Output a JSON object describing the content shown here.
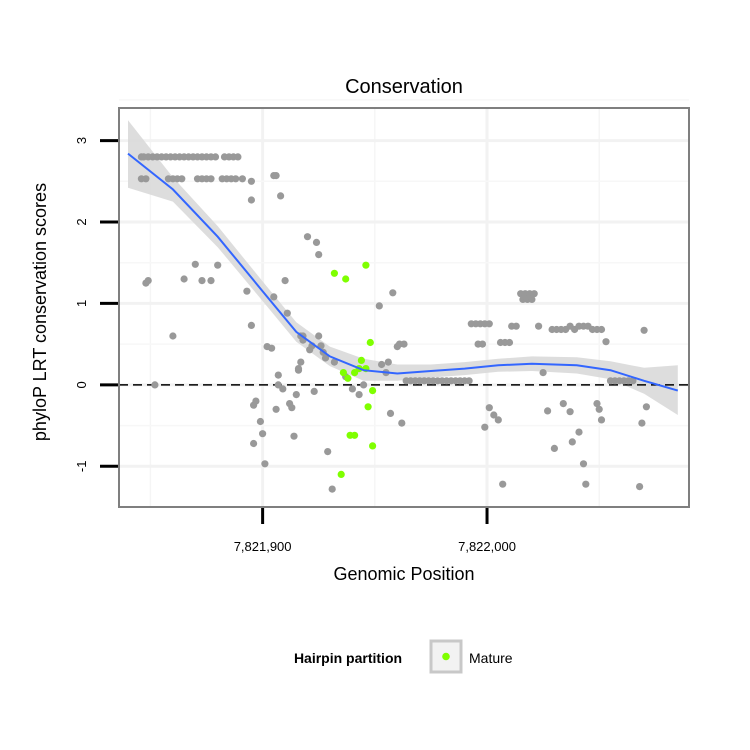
{
  "chart_data": {
    "type": "scatter",
    "title": "Conservation",
    "xlabel": "Genomic Position",
    "ylabel": "phyloP LRT conservation scores",
    "xlim": [
      7821836,
      7822090
    ],
    "ylim": [
      -1.5,
      3.4
    ],
    "x_ticks": [
      {
        "value": 7821900,
        "label": "7,821,900"
      },
      {
        "value": 7822000,
        "label": "7,822,000"
      }
    ],
    "y_ticks": [
      {
        "value": -1,
        "label": "-1"
      },
      {
        "value": 0,
        "label": "0"
      },
      {
        "value": 1,
        "label": "1"
      },
      {
        "value": 2,
        "label": "2"
      },
      {
        "value": 3,
        "label": "3"
      }
    ],
    "reference_line": {
      "y": 0,
      "style": "dashed"
    },
    "legend": {
      "title": "Hairpin partition",
      "entries": [
        {
          "label": "Mature",
          "color": "#7fff00"
        }
      ],
      "position": "bottom"
    },
    "colors": {
      "other": "#999999",
      "mature": "#7fff00",
      "smooth": "#3366ff",
      "band": "#d9d9d9",
      "grid": "#f2f2f2",
      "border": "#7f7f7f"
    },
    "series": [
      {
        "name": "Other",
        "color": "#999999",
        "points": [
          [
            7821846,
            2.8
          ],
          [
            7821847,
            2.8
          ],
          [
            7821849,
            2.8
          ],
          [
            7821851,
            2.8
          ],
          [
            7821853,
            2.8
          ],
          [
            7821855,
            2.8
          ],
          [
            7821857,
            2.8
          ],
          [
            7821859,
            2.8
          ],
          [
            7821861,
            2.8
          ],
          [
            7821863,
            2.8
          ],
          [
            7821865,
            2.8
          ],
          [
            7821867,
            2.8
          ],
          [
            7821869,
            2.8
          ],
          [
            7821871,
            2.8
          ],
          [
            7821873,
            2.8
          ],
          [
            7821875,
            2.8
          ],
          [
            7821877,
            2.8
          ],
          [
            7821879,
            2.8
          ],
          [
            7821883,
            2.8
          ],
          [
            7821885,
            2.8
          ],
          [
            7821887,
            2.8
          ],
          [
            7821889,
            2.8
          ],
          [
            7821846,
            2.53
          ],
          [
            7821848,
            2.53
          ],
          [
            7821858,
            2.53
          ],
          [
            7821860,
            2.53
          ],
          [
            7821862,
            2.53
          ],
          [
            7821864,
            2.53
          ],
          [
            7821871,
            2.53
          ],
          [
            7821873,
            2.53
          ],
          [
            7821875,
            2.53
          ],
          [
            7821877,
            2.53
          ],
          [
            7821882,
            2.53
          ],
          [
            7821884,
            2.53
          ],
          [
            7821886,
            2.53
          ],
          [
            7821888,
            2.53
          ],
          [
            7821891,
            2.53
          ],
          [
            7821895,
            2.5
          ],
          [
            7821895,
            2.27
          ],
          [
            7821905,
            2.57
          ],
          [
            7821906,
            2.57
          ],
          [
            7821908,
            2.32
          ],
          [
            7821848,
            1.25
          ],
          [
            7821849,
            1.28
          ],
          [
            7821852,
            0.0
          ],
          [
            7821860,
            0.6
          ],
          [
            7821865,
            1.3
          ],
          [
            7821870,
            1.48
          ],
          [
            7821873,
            1.28
          ],
          [
            7821877,
            1.28
          ],
          [
            7821880,
            1.47
          ],
          [
            7821893,
            1.15
          ],
          [
            7821895,
            0.73
          ],
          [
            7821896,
            -0.25
          ],
          [
            7821897,
            -0.2
          ],
          [
            7821896,
            -0.72
          ],
          [
            7821899,
            -0.45
          ],
          [
            7821900,
            -0.6
          ],
          [
            7821901,
            -0.97
          ],
          [
            7821902,
            0.47
          ],
          [
            7821904,
            0.45
          ],
          [
            7821905,
            1.08
          ],
          [
            7821906,
            -0.3
          ],
          [
            7821907,
            0.12
          ],
          [
            7821907,
            0.0
          ],
          [
            7821909,
            -0.05
          ],
          [
            7821910,
            1.28
          ],
          [
            7821911,
            0.88
          ],
          [
            7821912,
            -0.23
          ],
          [
            7821913,
            -0.28
          ],
          [
            7821914,
            -0.63
          ],
          [
            7821915,
            -0.12
          ],
          [
            7821916,
            0.18
          ],
          [
            7821916,
            0.2
          ],
          [
            7821917,
            0.28
          ],
          [
            7821918,
            0.6
          ],
          [
            7821918,
            0.55
          ],
          [
            7821917,
            0.6
          ],
          [
            7821920,
            1.82
          ],
          [
            7821921,
            0.43
          ],
          [
            7821922,
            0.48
          ],
          [
            7821923,
            -0.08
          ],
          [
            7821924,
            1.75
          ],
          [
            7821925,
            1.6
          ],
          [
            7821925,
            0.6
          ],
          [
            7821926,
            0.48
          ],
          [
            7821927,
            0.4
          ],
          [
            7821928,
            0.33
          ],
          [
            7821929,
            -0.82
          ],
          [
            7821931,
            -1.28
          ],
          [
            7821932,
            0.28
          ],
          [
            7821937,
            0.1
          ],
          [
            7821940,
            -0.05
          ],
          [
            7821943,
            -0.12
          ],
          [
            7821945,
            0.0
          ],
          [
            7821952,
            0.97
          ],
          [
            7821953,
            0.25
          ],
          [
            7821955,
            0.15
          ],
          [
            7821956,
            0.28
          ],
          [
            7821957,
            -0.35
          ],
          [
            7821958,
            1.13
          ],
          [
            7821960,
            0.47
          ],
          [
            7821961,
            0.5
          ],
          [
            7821962,
            -0.47
          ],
          [
            7821963,
            0.5
          ],
          [
            7821964,
            0.05
          ],
          [
            7821966,
            0.05
          ],
          [
            7821968,
            0.05
          ],
          [
            7821970,
            0.05
          ],
          [
            7821972,
            0.05
          ],
          [
            7821974,
            0.05
          ],
          [
            7821976,
            0.05
          ],
          [
            7821978,
            0.05
          ],
          [
            7821980,
            0.05
          ],
          [
            7821982,
            0.05
          ],
          [
            7821984,
            0.05
          ],
          [
            7821986,
            0.05
          ],
          [
            7821988,
            0.05
          ],
          [
            7821990,
            0.05
          ],
          [
            7821992,
            0.05
          ],
          [
            7821993,
            0.75
          ],
          [
            7821995,
            0.75
          ],
          [
            7821997,
            0.75
          ],
          [
            7821999,
            0.75
          ],
          [
            7822001,
            0.75
          ],
          [
            7821996,
            0.5
          ],
          [
            7821998,
            0.5
          ],
          [
            7821999,
            -0.52
          ],
          [
            7822001,
            -0.28
          ],
          [
            7822003,
            -0.37
          ],
          [
            7822005,
            -0.43
          ],
          [
            7822006,
            0.52
          ],
          [
            7822008,
            0.52
          ],
          [
            7822010,
            0.52
          ],
          [
            7822007,
            -1.22
          ],
          [
            7822011,
            0.72
          ],
          [
            7822013,
            0.72
          ],
          [
            7822015,
            1.12
          ],
          [
            7822017,
            1.12
          ],
          [
            7822019,
            1.12
          ],
          [
            7822021,
            1.12
          ],
          [
            7822016,
            1.05
          ],
          [
            7822018,
            1.05
          ],
          [
            7822020,
            1.05
          ],
          [
            7822023,
            0.72
          ],
          [
            7822025,
            0.15
          ],
          [
            7822029,
            0.68
          ],
          [
            7822031,
            0.68
          ],
          [
            7822033,
            0.68
          ],
          [
            7822035,
            0.68
          ],
          [
            7822037,
            0.72
          ],
          [
            7822039,
            0.68
          ],
          [
            7822041,
            0.72
          ],
          [
            7822043,
            0.72
          ],
          [
            7822045,
            0.72
          ],
          [
            7822047,
            0.68
          ],
          [
            7822049,
            0.68
          ],
          [
            7822051,
            0.68
          ],
          [
            7822027,
            -0.32
          ],
          [
            7822030,
            -0.78
          ],
          [
            7822034,
            -0.23
          ],
          [
            7822037,
            -0.33
          ],
          [
            7822038,
            -0.7
          ],
          [
            7822041,
            -0.58
          ],
          [
            7822043,
            -0.97
          ],
          [
            7822044,
            -1.22
          ],
          [
            7822049,
            -0.23
          ],
          [
            7822050,
            -0.3
          ],
          [
            7822051,
            -0.43
          ],
          [
            7822053,
            0.53
          ],
          [
            7822055,
            0.05
          ],
          [
            7822057,
            0.05
          ],
          [
            7822059,
            0.05
          ],
          [
            7822061,
            0.05
          ],
          [
            7822063,
            0.05
          ],
          [
            7822065,
            0.05
          ],
          [
            7822068,
            -1.25
          ],
          [
            7822069,
            -0.47
          ],
          [
            7822070,
            0.67
          ],
          [
            7822071,
            -0.27
          ]
        ]
      },
      {
        "name": "Mature",
        "color": "#7fff00",
        "points": [
          [
            7821946,
            1.47
          ],
          [
            7821932,
            1.37
          ],
          [
            7821937,
            1.3
          ],
          [
            7821944,
            0.3
          ],
          [
            7821941,
            0.15
          ],
          [
            7821943,
            0.2
          ],
          [
            7821946,
            0.2
          ],
          [
            7821948,
            0.52
          ],
          [
            7821936,
            0.15
          ],
          [
            7821938,
            0.08
          ],
          [
            7821947,
            -0.27
          ],
          [
            7821949,
            -0.07
          ],
          [
            7821939,
            -0.62
          ],
          [
            7821941,
            -0.62
          ],
          [
            7821949,
            -0.75
          ],
          [
            7821935,
            -1.1
          ]
        ]
      }
    ],
    "smooth_line": {
      "x": [
        7821840,
        7821860,
        7821880,
        7821900,
        7821915,
        7821930,
        7821945,
        7821960,
        7821975,
        7821990,
        7822005,
        7822020,
        7822040,
        7822055,
        7822070,
        7822085
      ],
      "y": [
        2.84,
        2.4,
        1.82,
        1.15,
        0.65,
        0.35,
        0.18,
        0.14,
        0.17,
        0.2,
        0.24,
        0.26,
        0.24,
        0.18,
        0.05,
        -0.07
      ],
      "upper": [
        3.25,
        2.55,
        1.95,
        1.27,
        0.77,
        0.47,
        0.32,
        0.25,
        0.25,
        0.28,
        0.32,
        0.35,
        0.34,
        0.29,
        0.21,
        0.24
      ],
      "lower": [
        2.42,
        2.25,
        1.69,
        1.03,
        0.53,
        0.23,
        0.05,
        0.05,
        0.09,
        0.12,
        0.16,
        0.17,
        0.14,
        0.07,
        -0.11,
        -0.37
      ]
    }
  }
}
